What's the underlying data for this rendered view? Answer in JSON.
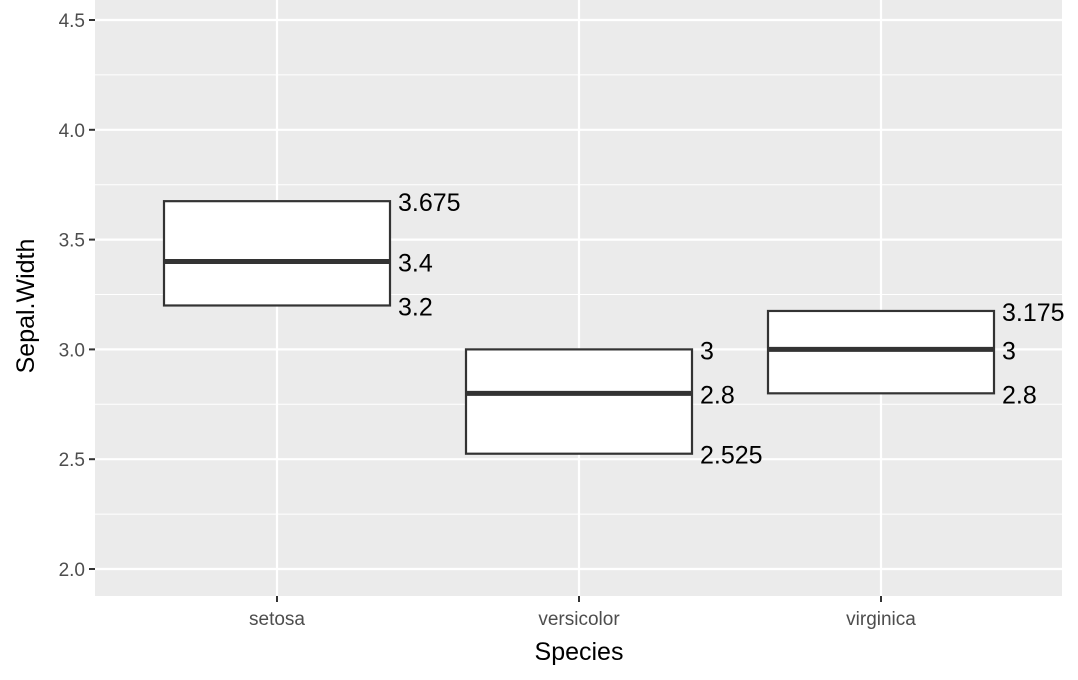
{
  "chart_data": {
    "type": "crossbar",
    "title": "",
    "xlabel": "Species",
    "ylabel": "Sepal.Width",
    "ylim": [
      1.88,
      4.52
    ],
    "yticks": [
      "2.0",
      "2.5",
      "3.0",
      "3.5",
      "4.0",
      "4.5"
    ],
    "ytick_values": [
      2.0,
      2.5,
      3.0,
      3.5,
      4.0,
      4.5
    ],
    "categories": [
      "setosa",
      "versicolor",
      "virginica"
    ],
    "series": [
      {
        "name": "setosa",
        "lower": 3.2,
        "middle": 3.4,
        "upper": 3.675,
        "labels": {
          "lower": "3.2",
          "middle": "3.4",
          "upper": "3.675"
        }
      },
      {
        "name": "versicolor",
        "lower": 2.525,
        "middle": 2.8,
        "upper": 3.0,
        "labels": {
          "lower": "2.525",
          "middle": "2.8",
          "upper": "3"
        }
      },
      {
        "name": "virginica",
        "lower": 2.8,
        "middle": 3.0,
        "upper": 3.175,
        "labels": {
          "lower": "2.8",
          "middle": "3",
          "upper": "3.175"
        }
      }
    ],
    "grid": true,
    "legend": "none"
  },
  "colors": {
    "panel": "#ebebeb",
    "grid": "#ffffff",
    "box_stroke": "#333333",
    "box_fill": "#ffffff"
  }
}
